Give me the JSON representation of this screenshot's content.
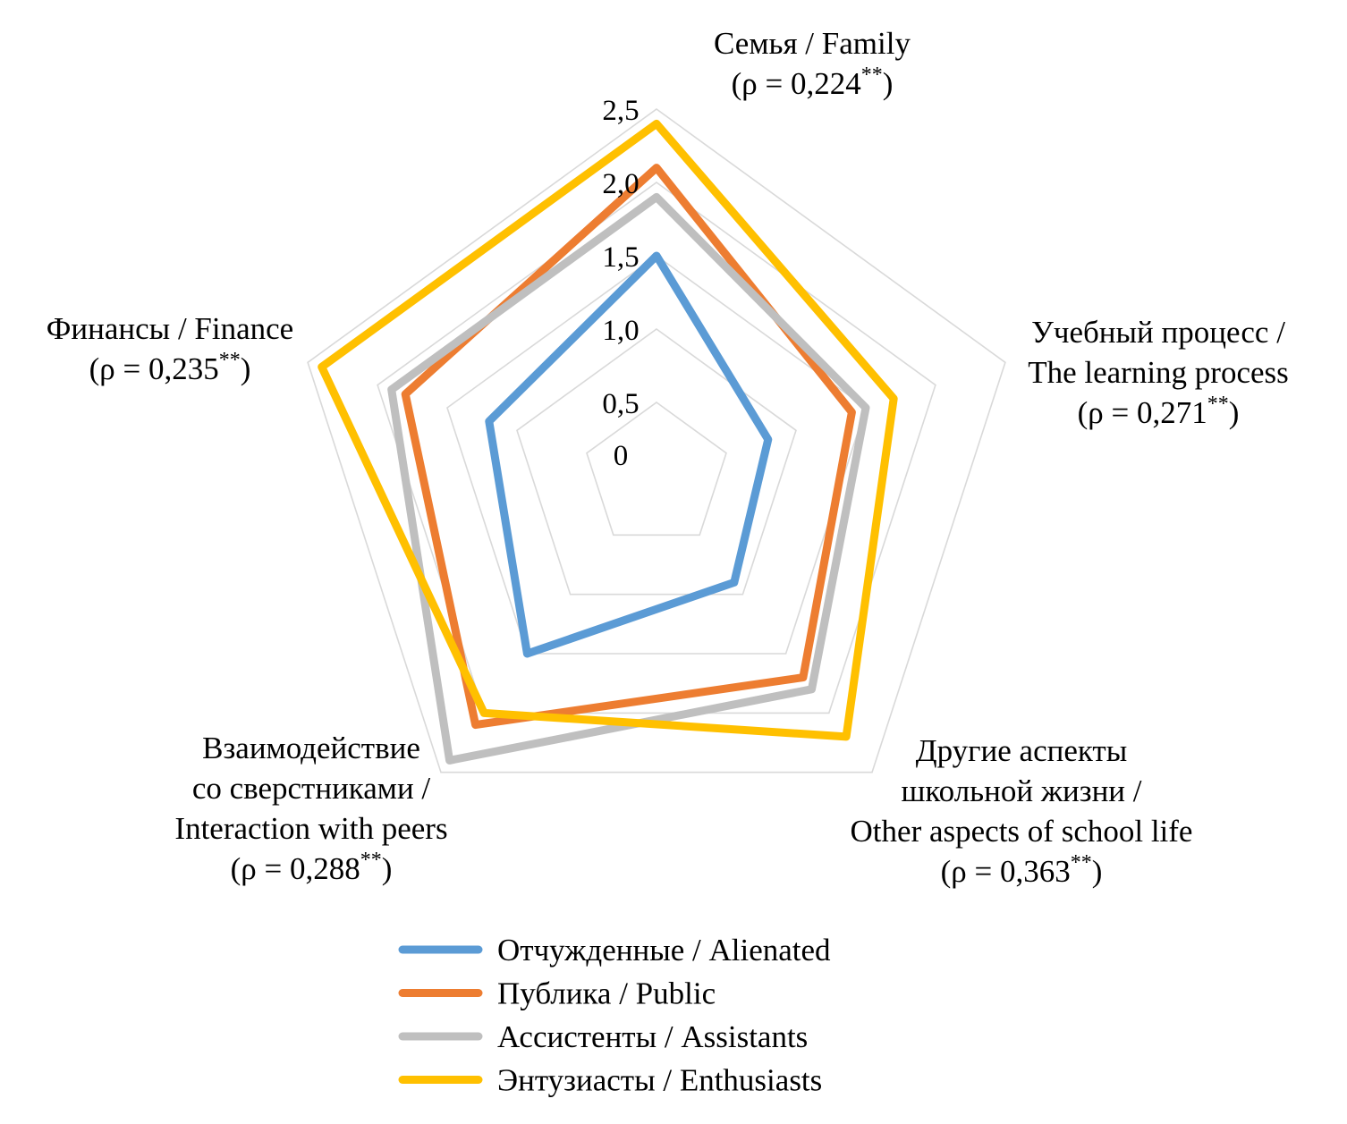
{
  "chart_data": {
    "type": "radar",
    "title": "",
    "rmax": 2.5,
    "ticks": [
      "0",
      "0,5",
      "1,0",
      "1,5",
      "2,0",
      "2,5"
    ],
    "tick_values": [
      0,
      0.5,
      1.0,
      1.5,
      2.0,
      2.5
    ],
    "grid": true,
    "legend_position": "bottom",
    "axes": [
      {
        "lines": [
          "Семья / Family"
        ],
        "rho": "(ρ  = 0,224",
        "stars": "**",
        "close": ")"
      },
      {
        "lines": [
          "Учебный процесс /",
          "The learning process"
        ],
        "rho": "(ρ = 0,271",
        "stars": "**",
        "close": ")"
      },
      {
        "lines": [
          "Другие аспекты",
          "школьной жизни /",
          "Other aspects of school life"
        ],
        "rho": "(ρ = 0,363",
        "stars": "**",
        "close": ")"
      },
      {
        "lines": [
          "Взаимодействие",
          "со сверстниками /",
          "Interaction with peers"
        ],
        "rho": "(ρ = 0,288",
        "stars": "**",
        "close": ")"
      },
      {
        "lines": [
          "Финансы / Finance"
        ],
        "rho": "(ρ = 0,235",
        "stars": "**",
        "close": ")"
      }
    ],
    "series": [
      {
        "name": "Отчужденные / Alienated",
        "color": "#5B9BD5",
        "values": [
          1.5,
          0.8,
          0.9,
          1.5,
          1.2
        ]
      },
      {
        "name": "Публика / Public",
        "color": "#ED7D31",
        "values": [
          2.1,
          1.4,
          1.7,
          2.1,
          1.8
        ]
      },
      {
        "name": "Ассистенты / Assistants",
        "color": "#BFBFBF",
        "values": [
          1.9,
          1.5,
          1.8,
          2.4,
          1.9
        ]
      },
      {
        "name": "Энтузиасты / Enthusiasts",
        "color": "#FFC000",
        "values": [
          2.4,
          1.7,
          2.2,
          2.0,
          2.4
        ]
      }
    ]
  }
}
